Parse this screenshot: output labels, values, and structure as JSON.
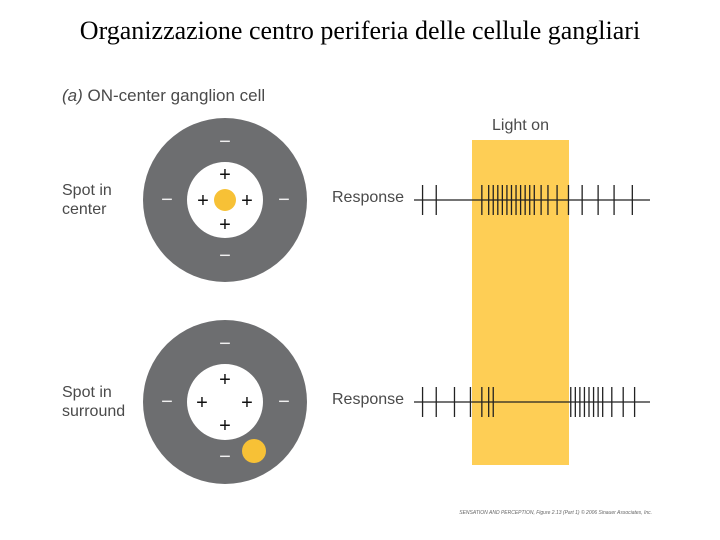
{
  "title": "Organizzazione centro periferia delle cellule gangliari",
  "panel": {
    "letter": "(a)",
    "title": "ON-center ganglion cell"
  },
  "light_label": "Light on",
  "colors": {
    "surround": "#6d6e70",
    "center": "#ffffff",
    "spot": "#f7c136",
    "light": "#fece55",
    "spike": "#222222"
  },
  "rows": [
    {
      "label_lines": [
        "Spot in",
        "center"
      ],
      "response_label": "Response",
      "spot_location": "center",
      "spikes": [
        0.02,
        0.08,
        0.28,
        0.31,
        0.33,
        0.35,
        0.37,
        0.39,
        0.41,
        0.43,
        0.45,
        0.47,
        0.49,
        0.51,
        0.54,
        0.57,
        0.61,
        0.66,
        0.72,
        0.79,
        0.86,
        0.94
      ]
    },
    {
      "label_lines": [
        "Spot in",
        "surround"
      ],
      "response_label": "Response",
      "spot_location": "surround",
      "spikes": [
        0.02,
        0.08,
        0.16,
        0.23,
        0.28,
        0.31,
        0.33,
        0.67,
        0.69,
        0.71,
        0.73,
        0.75,
        0.77,
        0.79,
        0.81,
        0.85,
        0.9,
        0.95
      ]
    }
  ],
  "signs": {
    "center": "+",
    "surround": "−"
  },
  "credit": "SENSATION AND PERCEPTION, Figure 2.13 (Part 1)  © 2006 Sinauer Associates, Inc."
}
